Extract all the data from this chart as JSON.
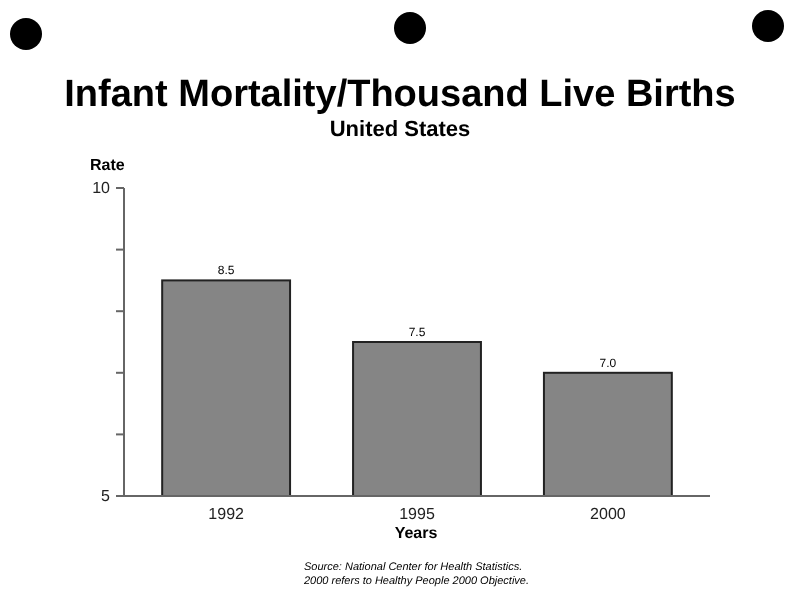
{
  "chart_data": {
    "type": "bar",
    "title": "Infant Mortality/Thousand Live Births",
    "subtitle": "United States",
    "ylabel": "Rate",
    "xlabel": "Years",
    "categories": [
      "1992",
      "1995",
      "2000"
    ],
    "values": [
      8.5,
      7.5,
      7.0
    ],
    "value_labels": [
      "8.5",
      "7.5",
      "7.0"
    ],
    "color": "#858585",
    "ylim": [
      5,
      10
    ],
    "yticks": [
      5,
      {
        "value": 6,
        "label": null
      },
      {
        "value": 7,
        "label": null
      },
      {
        "value": 8,
        "label": null
      },
      {
        "value": 9,
        "label": null
      },
      10
    ],
    "annotations": [
      "Source: National Center for Health Statistics.",
      "2000 refers to Healthy People 2000 Objective."
    ]
  }
}
